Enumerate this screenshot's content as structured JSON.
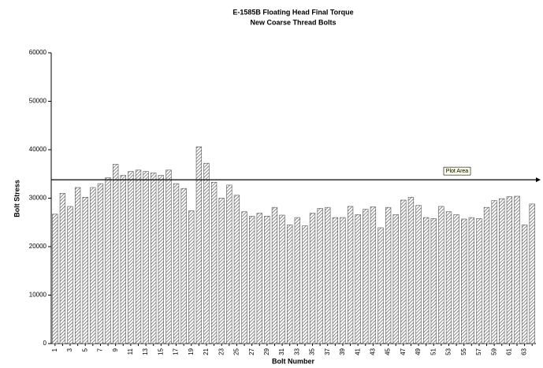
{
  "chart_data": {
    "type": "bar",
    "title": "E-1585B Floating Head Final Torque",
    "subtitle": "New Coarse Thread Bolts",
    "x_label": "Bolt Number",
    "y_label": "Bolt Stress",
    "categories": [
      "1",
      null,
      "3",
      null,
      "5",
      null,
      "7",
      null,
      "9",
      null,
      "11",
      null,
      "13",
      null,
      "15",
      null,
      "17",
      null,
      "19",
      null,
      "21",
      null,
      "23",
      null,
      "25",
      null,
      "27",
      null,
      "29",
      null,
      "31",
      null,
      "33",
      null,
      "35",
      null,
      "37",
      null,
      "39",
      null,
      "41",
      null,
      "43",
      null,
      "45",
      null,
      "47",
      null,
      "49",
      null,
      "51",
      null,
      "53",
      null,
      "55",
      null,
      "57",
      null,
      "59",
      null,
      "61",
      null,
      "63",
      null
    ],
    "values": [
      26700,
      31000,
      28300,
      32200,
      30200,
      32200,
      33000,
      34200,
      37000,
      34700,
      35500,
      35800,
      35500,
      35200,
      34700,
      35800,
      33000,
      32000,
      27400,
      40600,
      37200,
      33300,
      30000,
      32700,
      30600,
      27200,
      26300,
      26900,
      26300,
      28100,
      26500,
      24500,
      26000,
      24300,
      26900,
      27900,
      28100,
      26000,
      26000,
      28300,
      26600,
      27700,
      28200,
      23900,
      28100,
      26600,
      29600,
      30200,
      28500,
      26000,
      25800,
      28300,
      27200,
      26600,
      25700,
      26000,
      25800,
      28100,
      29500,
      29900,
      30300,
      30400,
      24500,
      28800
    ],
    "color": "#555555",
    "ylim": [
      0,
      60000
    ],
    "yticks": [
      0,
      10000,
      20000,
      30000,
      40000,
      50000,
      60000
    ],
    "reference_line": {
      "value": 33800,
      "label": "Plot Area"
    }
  }
}
